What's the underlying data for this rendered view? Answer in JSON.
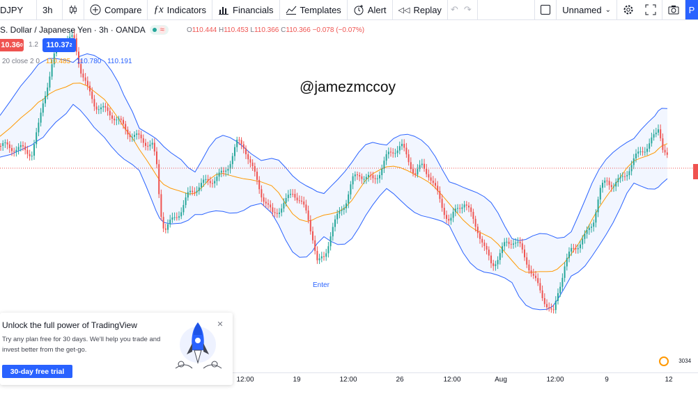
{
  "toolbar": {
    "symbol": "DJPY",
    "interval": "3h",
    "compare": "Compare",
    "indicators": "Indicators",
    "financials": "Financials",
    "templates": "Templates",
    "alert": "Alert",
    "replay": "Replay",
    "layout_name": "Unnamed",
    "publish_partial": "P"
  },
  "legend": {
    "symbol_title": "S. Dollar / Japanese Yen · 3h · OANDA",
    "open_key": "O",
    "open": "110.444",
    "high_key": "H",
    "high": "110.453",
    "low_key": "L",
    "low": "110.366",
    "close_key": "C",
    "close": "110.366",
    "change": "−0.078 (−0.07%)",
    "sell_price": "10.36",
    "sell_sup": "0",
    "spread": "1.2",
    "buy_price": "110.37",
    "buy_sup": "2"
  },
  "bollinger": {
    "params": "20 close 2 0",
    "basis": "110.485",
    "upper": "110.780",
    "lower": "110.191"
  },
  "chart": {
    "watermark": "@jamezmccoy",
    "annotation": "Enter",
    "colors": {
      "up": "#26a69a",
      "down": "#ef5350",
      "band": "#2962ff",
      "basis": "#ff9800"
    }
  },
  "time_axis": {
    "ticks": [
      "12:00",
      "19",
      "12:00",
      "26",
      "12:00",
      "Aug",
      "12:00",
      "9",
      "12"
    ]
  },
  "promo": {
    "title": "Unlock the full power of TradingView",
    "body": "Try any plan free for 30 days. We'll help you trade and invest better from the get-go.",
    "button": "30-day free trial"
  },
  "badge": {
    "text": "3034"
  }
}
